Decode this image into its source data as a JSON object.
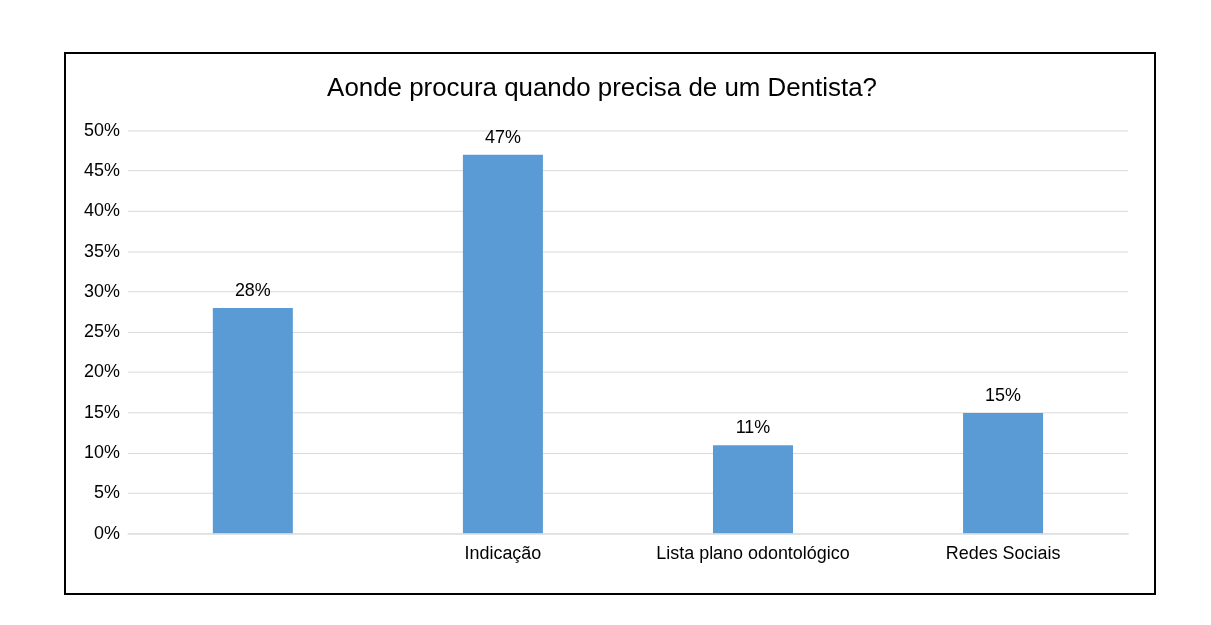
{
  "chart_data": {
    "type": "bar",
    "title": "Aonde procura quando precisa de um Dentista?",
    "categories": [
      null,
      "Indicação",
      "Lista plano odontológico",
      "Redes Sociais"
    ],
    "values": [
      28,
      47,
      11,
      15
    ],
    "value_labels": [
      "28%",
      "47%",
      "11%",
      "15%"
    ],
    "color": "#5b9bd5",
    "ylim": [
      0,
      50
    ],
    "yticks": [
      {
        "value": 0,
        "label": "0%"
      },
      {
        "value": 5,
        "label": "5%"
      },
      {
        "value": 10,
        "label": "10%"
      },
      {
        "value": 15,
        "label": "15%"
      },
      {
        "value": 20,
        "label": "20%"
      },
      {
        "value": 25,
        "label": "25%"
      },
      {
        "value": 30,
        "label": "30%"
      },
      {
        "value": 35,
        "label": "35%"
      },
      {
        "value": 40,
        "label": "40%"
      },
      {
        "value": 45,
        "label": "45%"
      },
      {
        "value": 50,
        "label": "50%"
      }
    ],
    "grid": "y",
    "legend": false
  }
}
